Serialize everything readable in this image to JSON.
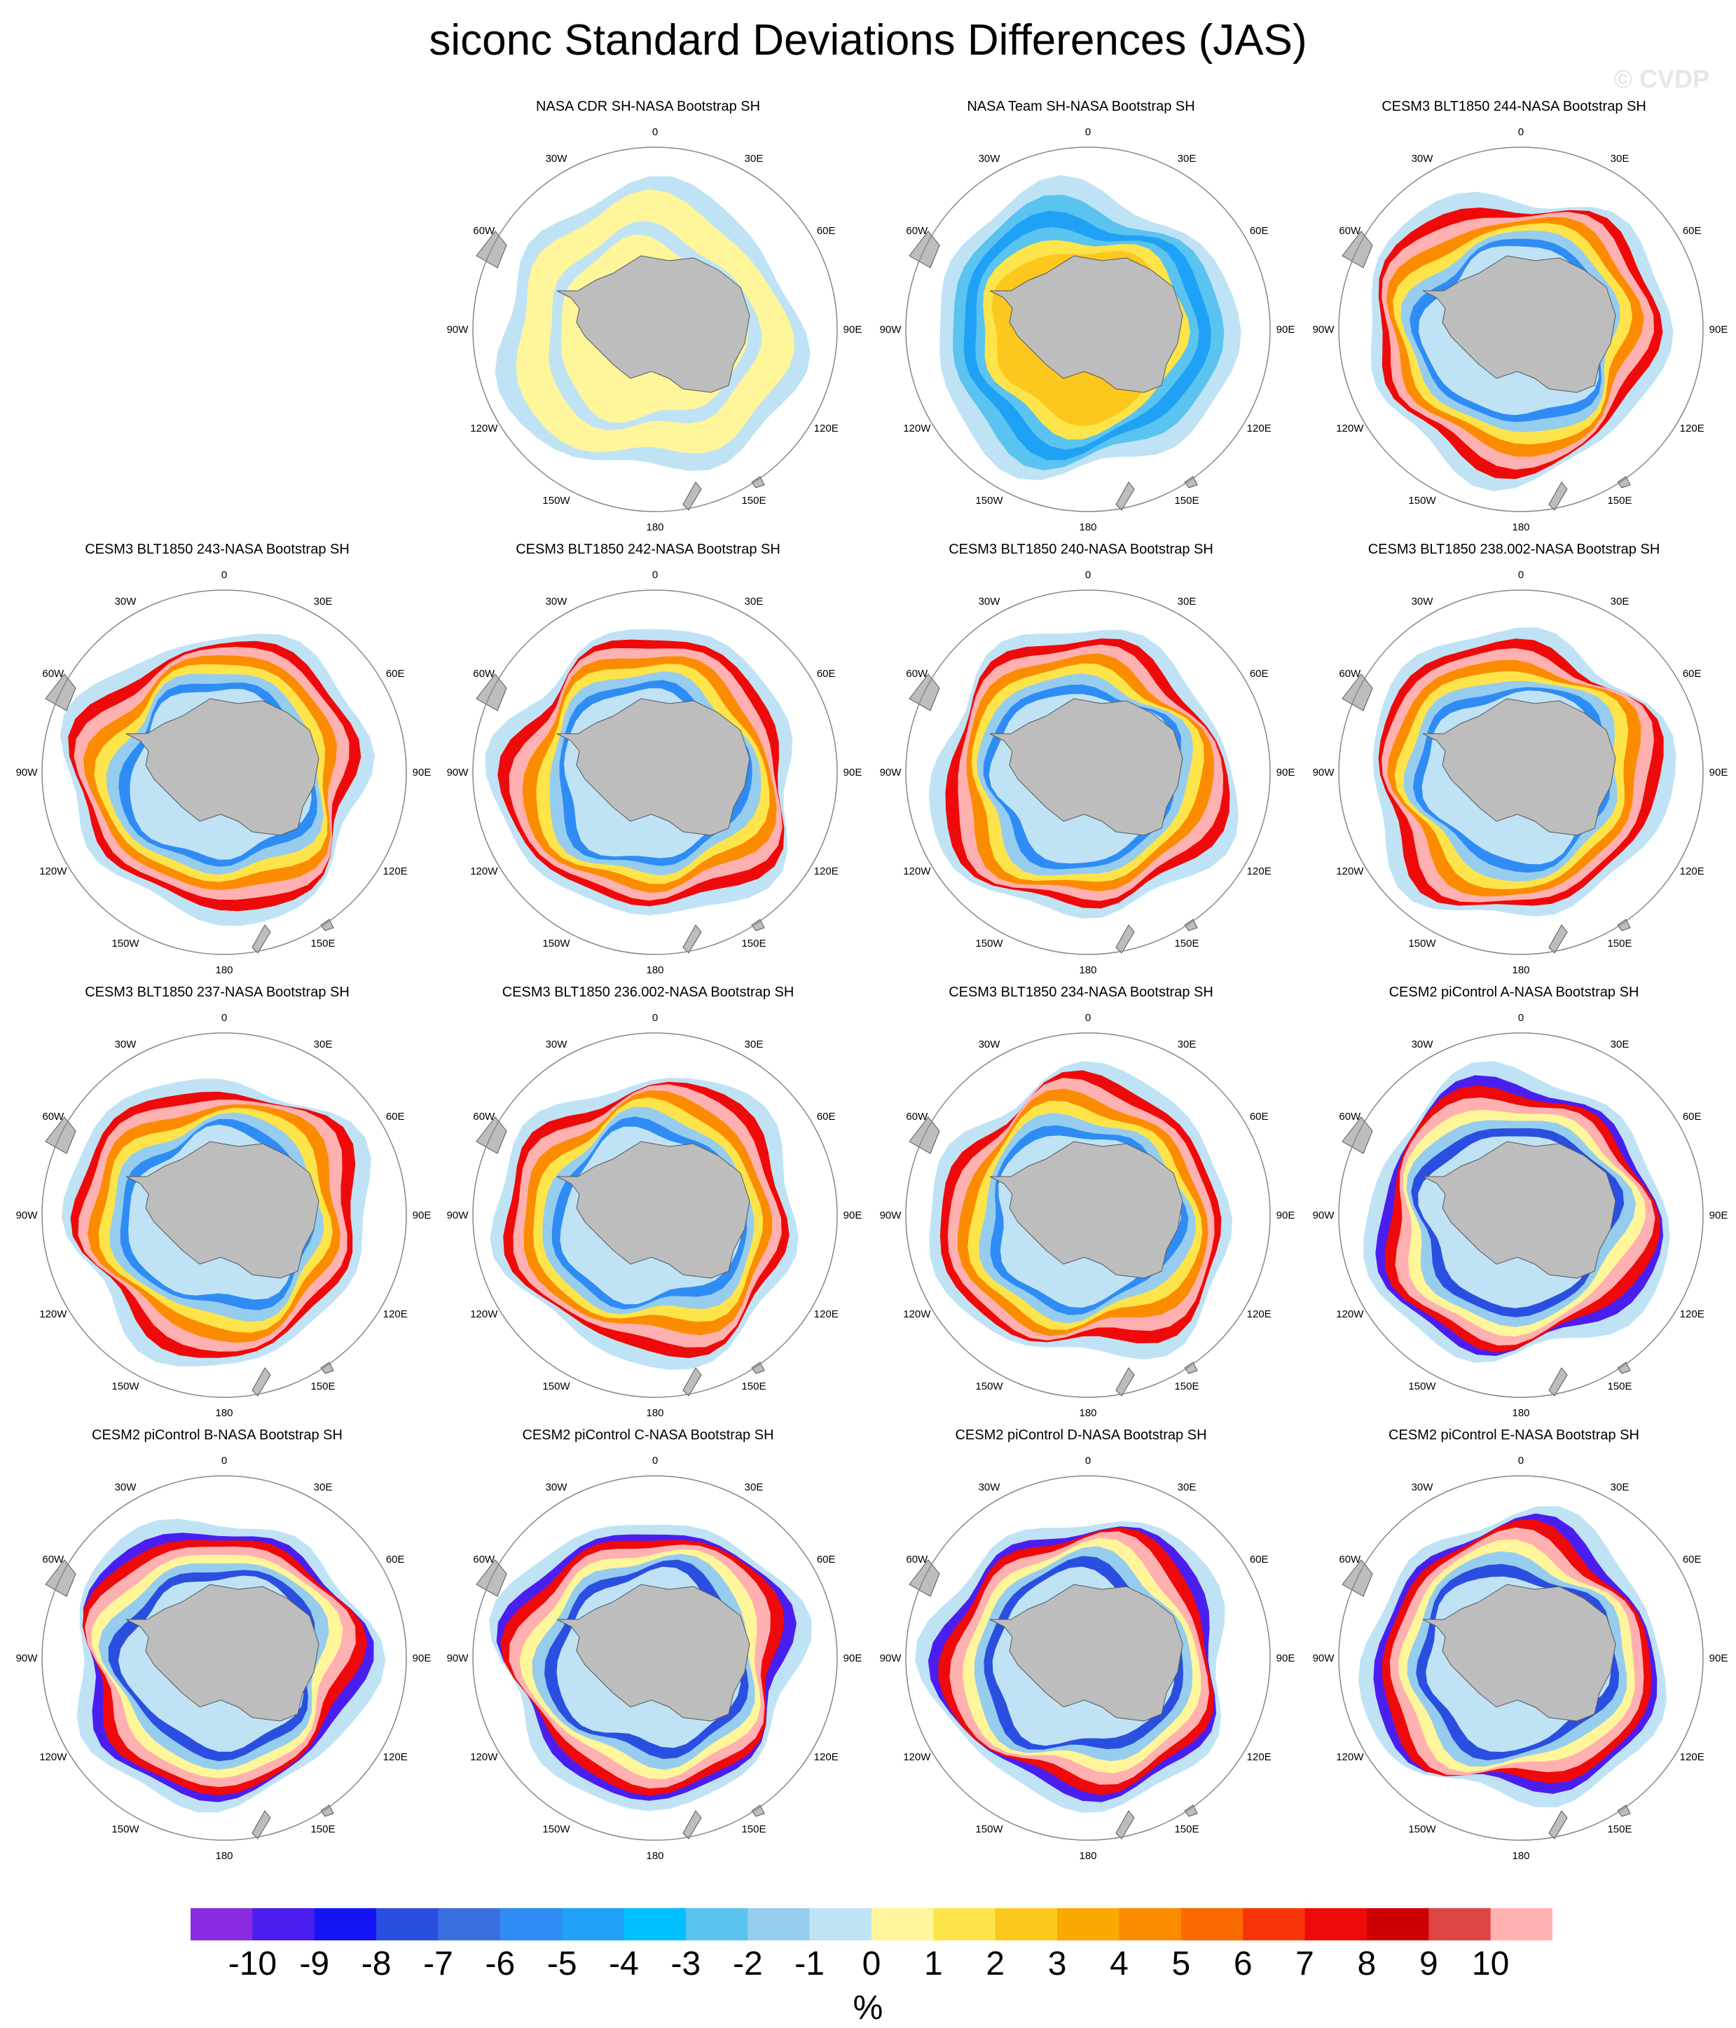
{
  "title": "siconc Standard Deviations Differences (JAS)",
  "watermark": "© CVDP",
  "longitude_labels": {
    "n": "0",
    "ne30": "30E",
    "ne60": "60E",
    "e90": "90E",
    "se120": "120E",
    "se150": "150E",
    "s": "180",
    "sw150": "150W",
    "sw120": "120W",
    "w90": "90W",
    "nw60": "60W",
    "nw30": "30W"
  },
  "panels": [
    {
      "title": "NASA CDR SH-NASA Bootstrap SH",
      "style": "cdr"
    },
    {
      "title": "NASA Team SH-NASA Bootstrap SH",
      "style": "team"
    },
    {
      "title": "CESM3 BLT1850 244-NASA Bootstrap SH",
      "style": "cesm3"
    },
    {
      "title": "CESM3 BLT1850 243-NASA Bootstrap SH",
      "style": "cesm3"
    },
    {
      "title": "CESM3 BLT1850 242-NASA Bootstrap SH",
      "style": "cesm3"
    },
    {
      "title": "CESM3 BLT1850 240-NASA Bootstrap SH",
      "style": "cesm3"
    },
    {
      "title": "CESM3 BLT1850 238.002-NASA Bootstrap SH",
      "style": "cesm3"
    },
    {
      "title": "CESM3 BLT1850 237-NASA Bootstrap SH",
      "style": "cesm3"
    },
    {
      "title": "CESM3 BLT1850 236.002-NASA Bootstrap SH",
      "style": "cesm3"
    },
    {
      "title": "CESM3 BLT1850 234-NASA Bootstrap SH",
      "style": "cesm3"
    },
    {
      "title": "CESM2 piControl A-NASA Bootstrap SH",
      "style": "cesm2"
    },
    {
      "title": "CESM2 piControl B-NASA Bootstrap SH",
      "style": "cesm2"
    },
    {
      "title": "CESM2 piControl C-NASA Bootstrap SH",
      "style": "cesm2"
    },
    {
      "title": "CESM2 piControl D-NASA Bootstrap SH",
      "style": "cesm2"
    },
    {
      "title": "CESM2 piControl E-NASA Bootstrap SH",
      "style": "cesm2"
    }
  ],
  "colorbar": {
    "labels": [
      "-10",
      "-9",
      "-8",
      "-7",
      "-6",
      "-5",
      "-4",
      "-3",
      "-2",
      "-1",
      "0",
      "1",
      "2",
      "3",
      "4",
      "5",
      "6",
      "7",
      "8",
      "9",
      "10"
    ],
    "colors": [
      "#8a2be2",
      "#4b1ef0",
      "#1414f5",
      "#2a4fe0",
      "#3a6fe0",
      "#2f8cf5",
      "#1fa2f5",
      "#00bfff",
      "#5ac3f0",
      "#96cdee",
      "#bfe3f5",
      "#fff59a",
      "#fde44a",
      "#fcc81e",
      "#fba800",
      "#fb8c00",
      "#fb6a00",
      "#f8340a",
      "#ee0a0a",
      "#cc0000",
      "#dd4444",
      "#ffb0b0"
    ],
    "unit": "%"
  }
}
